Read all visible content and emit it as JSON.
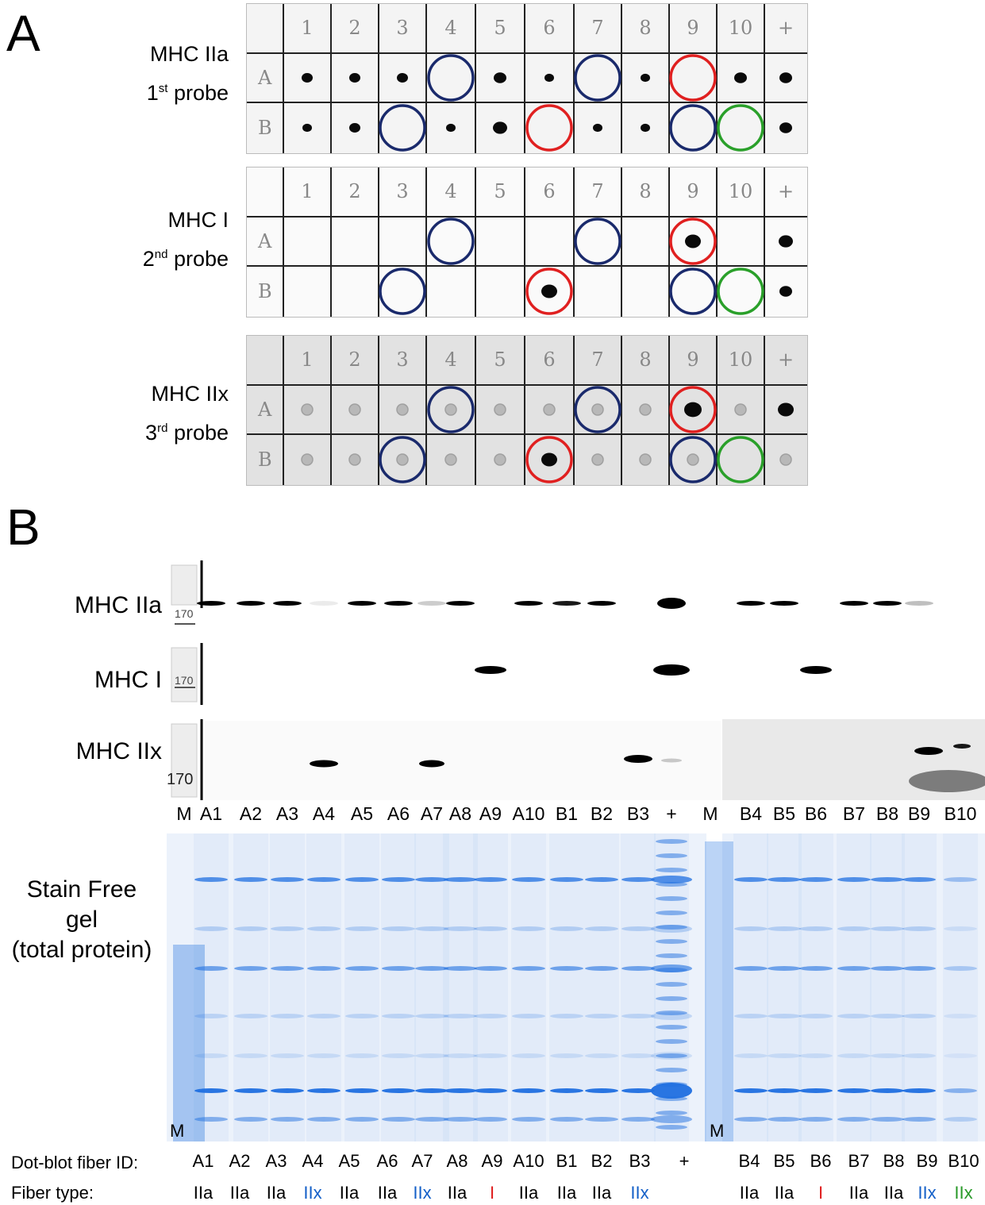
{
  "panels": {
    "a_letter": "A",
    "b_letter": "B"
  },
  "dot_blots": {
    "columns": [
      "1",
      "2",
      "3",
      "4",
      "5",
      "6",
      "7",
      "8",
      "9",
      "10",
      "+"
    ],
    "rows": [
      "A",
      "B"
    ],
    "probes": [
      {
        "protein": "MHC IIa",
        "order_num": "1",
        "order_sup": "st",
        "probe_word": "probe"
      },
      {
        "protein": "MHC I",
        "order_num": "2",
        "order_sup": "nd",
        "probe_word": "probe"
      },
      {
        "protein": "MHC IIx",
        "order_num": "3",
        "order_sup": "rd",
        "probe_word": "probe"
      }
    ],
    "circle_colors": {
      "IIx": "#1a2a6c",
      "I": "#e02020",
      "IIx_hybrid": "#2aa02a"
    }
  },
  "western": {
    "rows": [
      {
        "label": "MHC IIa",
        "marker": "170"
      },
      {
        "label": "MHC I",
        "marker": "170"
      },
      {
        "label": "MHC IIx",
        "marker": "170"
      }
    ],
    "lanes_left": [
      "M",
      "A1",
      "A2",
      "A3",
      "A4",
      "A5",
      "A6",
      "A7",
      "A8",
      "A9",
      "A10",
      "B1",
      "B2",
      "B3",
      "+"
    ],
    "lanes_right": [
      "M",
      "B4",
      "B5",
      "B6",
      "B7",
      "B8",
      "B9",
      "B10"
    ]
  },
  "gel": {
    "line1": "Stain Free",
    "line2": "gel",
    "line3": "(total protein)",
    "marker_left": "M",
    "marker_right": "M",
    "color": "#1f6fe0"
  },
  "table": {
    "id_title": "Dot-blot fiber ID:",
    "type_title": "Fiber type:",
    "ids": [
      "A1",
      "A2",
      "A3",
      "A4",
      "A5",
      "A6",
      "A7",
      "A8",
      "A9",
      "A10",
      "B1",
      "B2",
      "B3",
      "+",
      "B4",
      "B5",
      "B6",
      "B7",
      "B8",
      "B9",
      "B10"
    ],
    "types": [
      "IIa",
      "IIa",
      "IIa",
      "IIx",
      "IIa",
      "IIa",
      "IIx",
      "IIa",
      "I",
      "IIa",
      "IIa",
      "IIa",
      "IIx",
      "",
      "IIa",
      "IIa",
      "I",
      "IIa",
      "IIa",
      "IIx",
      "IIx"
    ],
    "type_colors": {
      "IIa": "#000000",
      "IIx": "#1560c8",
      "I": "#e02020",
      "IIx_last": "#2a9a2a"
    }
  }
}
